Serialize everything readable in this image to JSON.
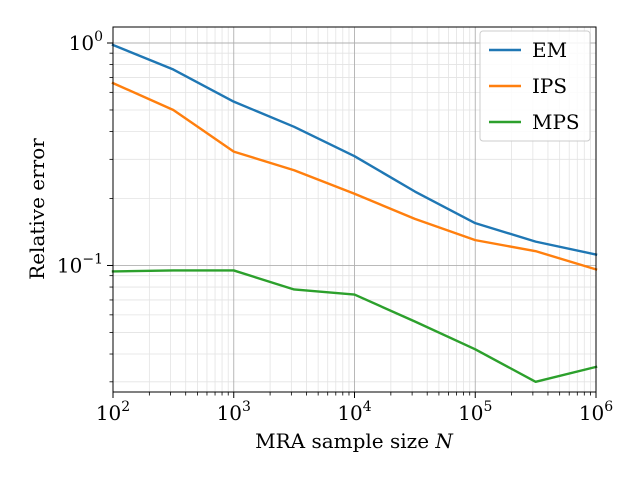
{
  "chart_data": {
    "type": "line",
    "xscale": "log",
    "yscale": "log",
    "xlim": [
      100,
      1000000
    ],
    "ylim": [
      0.027,
      1.18
    ],
    "xlabel": "MRA sample size",
    "xlabel_var": "N",
    "ylabel": "Relative error",
    "grid": true,
    "legend_position": "top-right",
    "x_ticks": [
      {
        "value": 100,
        "base": "10",
        "exp": "2"
      },
      {
        "value": 1000,
        "base": "10",
        "exp": "3"
      },
      {
        "value": 10000,
        "base": "10",
        "exp": "4"
      },
      {
        "value": 100000,
        "base": "10",
        "exp": "5"
      },
      {
        "value": 1000000,
        "base": "10",
        "exp": "6"
      }
    ],
    "y_ticks": [
      {
        "value": 1,
        "base": "10",
        "exp": "0"
      },
      {
        "value": 0.1,
        "base": "10",
        "exp": "−1"
      }
    ],
    "x": [
      100,
      316,
      1000,
      3162,
      10000,
      31623,
      100000,
      316228,
      1000000
    ],
    "series": [
      {
        "name": "EM",
        "color": "#1f77b4",
        "values": [
          0.98,
          0.76,
          0.545,
          0.42,
          0.31,
          0.215,
          0.155,
          0.128,
          0.112
        ]
      },
      {
        "name": "IPS",
        "color": "#ff7f0e",
        "values": [
          0.66,
          0.5,
          0.325,
          0.268,
          0.21,
          0.162,
          0.13,
          0.116,
          0.096
        ]
      },
      {
        "name": "MPS",
        "color": "#2ca02c",
        "values": [
          0.094,
          0.095,
          0.095,
          0.078,
          0.074,
          0.056,
          0.042,
          0.03,
          0.035
        ]
      }
    ]
  }
}
